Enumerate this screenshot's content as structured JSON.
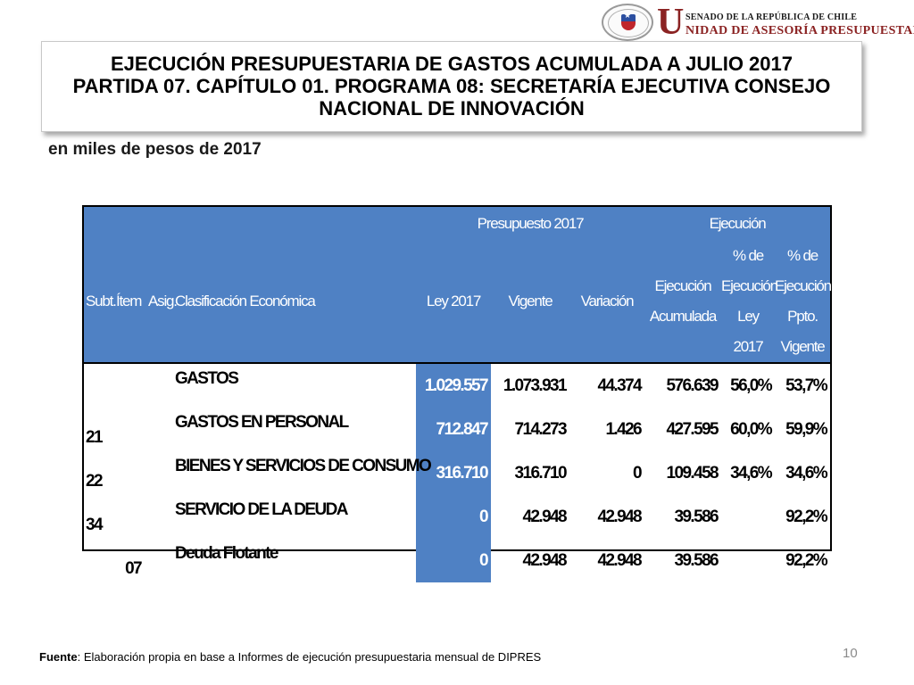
{
  "logo": {
    "line1": "SENADO DE LA REPÚBLICA DE CHILE",
    "big_letter": "U",
    "line2": "NIDAD DE ASESORÍA PRESUPUESTARIA",
    "seal_icon": "senate-seal-icon"
  },
  "title": {
    "line1": "EJECUCIÓN PRESUPUESTARIA DE GASTOS ACUMULADA A JULIO 2017",
    "line2": "PARTIDA 07. CAPÍTULO 01. PROGRAMA 08: SECRETARÍA EJECUTIVA CONSEJO",
    "line3": "NACIONAL DE INNOVACIÓN"
  },
  "subtitle": "en miles de pesos de 2017",
  "table": {
    "group_headers": {
      "presupuesto": "Presupuesto 2017",
      "ejecucion": "Ejecución"
    },
    "columns": {
      "subt": "Subt.",
      "item": "Ítem",
      "asig": "Asig.",
      "clasificacion": "Clasificación Económica",
      "ley": "Ley 2017",
      "vigente": "Vigente",
      "variacion": "Variación",
      "ejec_acum": "Ejecución Acumulada",
      "pct_ley": "% de Ejecución Ley 2017",
      "pct_vigente": "% de Ejecución Ppto. Vigente"
    },
    "rows": [
      {
        "subt": "",
        "item": "",
        "asig": "",
        "clasificacion": "GASTOS",
        "ley": "1.029.557",
        "vigente": "1.073.931",
        "variacion": "44.374",
        "ejec_acum": "576.639",
        "pct_ley": "56,0%",
        "pct_vigente": "53,7%"
      },
      {
        "subt": "21",
        "item": "",
        "asig": "",
        "clasificacion": "GASTOS EN PERSONAL",
        "ley": "712.847",
        "vigente": "714.273",
        "variacion": "1.426",
        "ejec_acum": "427.595",
        "pct_ley": "60,0%",
        "pct_vigente": "59,9%"
      },
      {
        "subt": "22",
        "item": "",
        "asig": "",
        "clasificacion": "BIENES Y SERVICIOS DE CONSUMO",
        "ley": "316.710",
        "vigente": "316.710",
        "variacion": "0",
        "ejec_acum": "109.458",
        "pct_ley": "34,6%",
        "pct_vigente": "34,6%"
      },
      {
        "subt": "34",
        "item": "",
        "asig": "",
        "clasificacion": "SERVICIO DE LA DEUDA",
        "ley": "0",
        "vigente": "42.948",
        "variacion": "42.948",
        "ejec_acum": "39.586",
        "pct_ley": "",
        "pct_vigente": "92,2%"
      },
      {
        "subt": "",
        "item": "07",
        "asig": "",
        "clasificacion": "Deuda Flotante",
        "ley": "0",
        "vigente": "42.948",
        "variacion": "42.948",
        "ejec_acum": "39.586",
        "pct_ley": "",
        "pct_vigente": "92,2%"
      }
    ]
  },
  "footer": {
    "label": "Fuente",
    "text": ": Elaboración propia en base  a Informes de ejecución presupuestaria mensual de DIPRES"
  },
  "page_number": "10",
  "colors": {
    "header_blue": "#4f81c4",
    "logo_red": "#8b2323"
  }
}
